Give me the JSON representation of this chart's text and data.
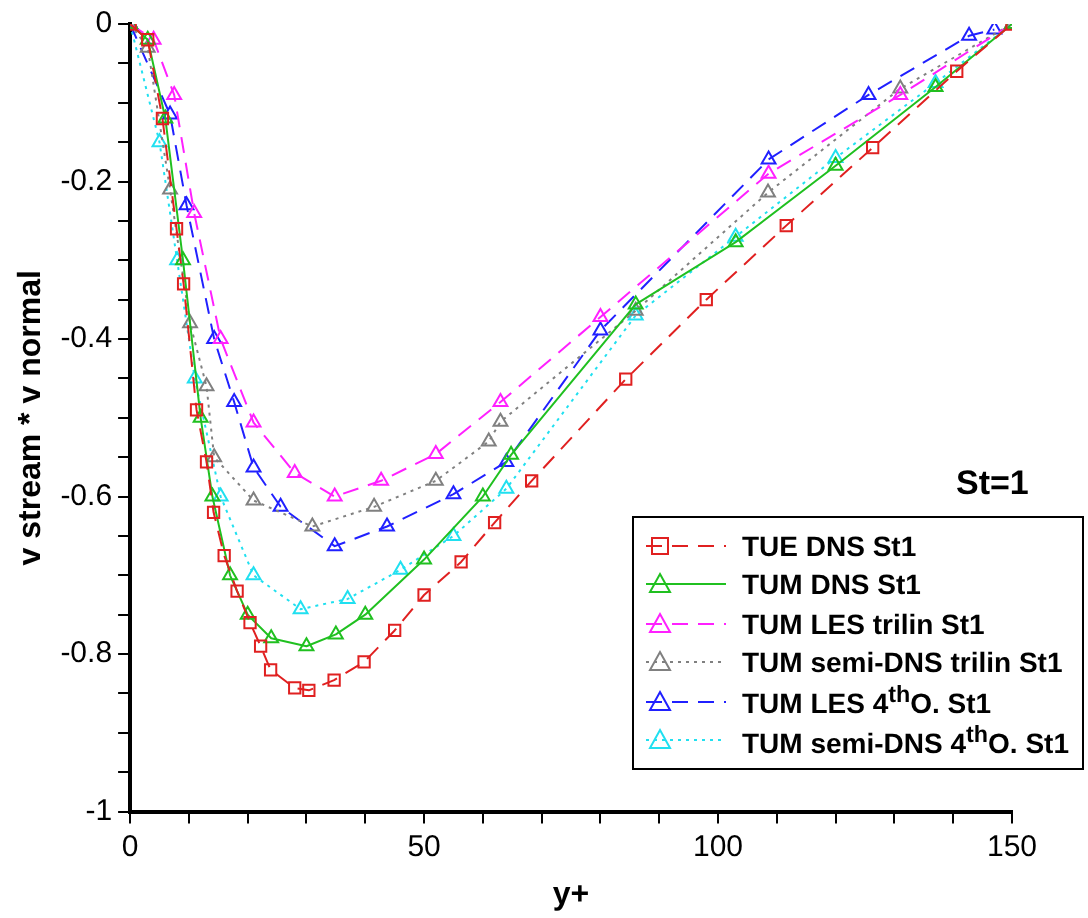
{
  "chart_data": {
    "type": "line",
    "xlabel": "y+",
    "ylabel": "v stream * v normal",
    "annotations": [
      "St=1"
    ],
    "xlim": [
      0,
      150
    ],
    "xticks": [
      0,
      {
        "value": 10,
        "label": null
      },
      {
        "value": 20,
        "label": null
      },
      {
        "value": 30,
        "label": null
      },
      {
        "value": 40,
        "label": null
      },
      50,
      {
        "value": 60,
        "label": null
      },
      {
        "value": 70,
        "label": null
      },
      {
        "value": 80,
        "label": null
      },
      {
        "value": 90,
        "label": null
      },
      100,
      {
        "value": 110,
        "label": null
      },
      {
        "value": 120,
        "label": null
      },
      {
        "value": 130,
        "label": null
      },
      {
        "value": 140,
        "label": null
      },
      150
    ],
    "ylim": [
      -1,
      0
    ],
    "yticks": [
      -1,
      {
        "value": -0.95,
        "label": null
      },
      {
        "value": -0.9,
        "label": null
      },
      {
        "value": -0.85,
        "label": null
      },
      -0.8,
      {
        "value": -0.75,
        "label": null
      },
      {
        "value": -0.7,
        "label": null
      },
      {
        "value": -0.65,
        "label": null
      },
      -0.6,
      {
        "value": -0.55,
        "label": null
      },
      {
        "value": -0.5,
        "label": null
      },
      {
        "value": -0.45,
        "label": null
      },
      -0.4,
      {
        "value": -0.35,
        "label": null
      },
      {
        "value": -0.3,
        "label": null
      },
      {
        "value": -0.25,
        "label": null
      },
      -0.2,
      {
        "value": -0.15,
        "label": null
      },
      {
        "value": -0.1,
        "label": null
      },
      {
        "value": -0.05,
        "label": null
      },
      0
    ],
    "grid": false,
    "legend": "bottom right",
    "series": [
      {
        "name": "TUE DNS St1",
        "color": "#e02020",
        "marker": "square",
        "line_style": "dashed",
        "x": [
          0,
          3,
          5.5,
          7.9,
          9.1,
          11.3,
          13,
          14.2,
          16,
          18.2,
          20.4,
          22.2,
          23.9,
          28,
          30.4,
          34.7,
          39.8,
          45,
          50,
          56.3,
          62,
          68.3,
          84.3,
          98,
          111.6,
          126.3,
          140.6,
          150
        ],
        "values": [
          0,
          -0.02,
          -0.12,
          -0.26,
          -0.33,
          -0.49,
          -0.556,
          -0.62,
          -0.675,
          -0.72,
          -0.76,
          -0.79,
          -0.82,
          -0.843,
          -0.846,
          -0.833,
          -0.81,
          -0.77,
          -0.725,
          -0.683,
          -0.633,
          -0.58,
          -0.451,
          -0.35,
          -0.256,
          -0.157,
          -0.06,
          0
        ]
      },
      {
        "name": "TUM DNS St1",
        "color": "#20c020",
        "marker": "triangle",
        "line_style": "solid",
        "x": [
          0,
          3,
          6,
          9,
          12,
          14,
          17,
          20,
          24,
          30,
          35,
          40,
          50,
          60,
          64.8,
          86,
          103,
          120,
          137,
          150
        ],
        "values": [
          0,
          -0.02,
          -0.12,
          -0.3,
          -0.5,
          -0.6,
          -0.7,
          -0.75,
          -0.78,
          -0.79,
          -0.775,
          -0.75,
          -0.68,
          -0.6,
          -0.547,
          -0.356,
          -0.277,
          -0.18,
          -0.08,
          0
        ]
      },
      {
        "name": "TUM LES trilin St1",
        "color": "#ff20ff",
        "marker": "triangle",
        "line_style": "dashed",
        "x": [
          0,
          4,
          7.5,
          10.9,
          15.4,
          21,
          28,
          34.8,
          42.7,
          52,
          63,
          80,
          108.6,
          131,
          150
        ],
        "values": [
          0,
          -0.02,
          -0.09,
          -0.24,
          -0.4,
          -0.506,
          -0.57,
          -0.6,
          -0.58,
          -0.546,
          -0.48,
          -0.372,
          -0.19,
          -0.09,
          0
        ]
      },
      {
        "name": "TUM semi-DNS trilin St1",
        "color": "#808080",
        "marker": "triangle",
        "line_style": "dotted",
        "x": [
          0,
          3,
          6.8,
          10.2,
          13,
          14.3,
          21,
          31,
          41.5,
          52,
          61,
          63,
          86,
          108.5,
          131,
          150
        ],
        "values": [
          0,
          -0.03,
          -0.21,
          -0.38,
          -0.46,
          -0.55,
          -0.605,
          -0.638,
          -0.613,
          -0.58,
          -0.53,
          -0.505,
          -0.364,
          -0.214,
          -0.082,
          0
        ]
      },
      {
        "name": "TUM LES 4$^{th}$O. St1",
        "color": "#2020ff",
        "marker": "triangle",
        "line_style": "dashed",
        "x": [
          0,
          6.8,
          9.6,
          14.3,
          17.7,
          21,
          25.6,
          34.8,
          43.7,
          55,
          64,
          80,
          108.6,
          125.6,
          142.7,
          147
        ],
        "values": [
          0,
          -0.115,
          -0.23,
          -0.4,
          -0.48,
          -0.563,
          -0.613,
          -0.663,
          -0.638,
          -0.597,
          -0.556,
          -0.389,
          -0.172,
          -0.09,
          -0.015,
          -0.007
        ]
      },
      {
        "name": "TUM semi-DNS 4$^{th}$O. St1",
        "color": "#20e0f0",
        "marker": "triangle",
        "line_style": "dotted",
        "x": [
          0,
          5,
          8,
          11,
          15.4,
          21,
          29,
          37,
          46,
          55,
          64,
          86,
          103,
          120,
          137,
          150
        ],
        "values": [
          0,
          -0.15,
          -0.3,
          -0.45,
          -0.6,
          -0.7,
          -0.743,
          -0.73,
          -0.693,
          -0.65,
          -0.59,
          -0.37,
          -0.27,
          -0.17,
          -0.075,
          0
        ]
      }
    ]
  }
}
